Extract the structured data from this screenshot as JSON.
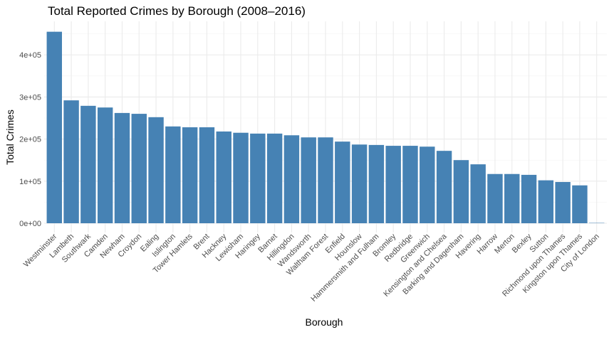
{
  "chart_data": {
    "type": "bar",
    "title": "Total Reported Crimes by Borough (2008–2016)",
    "xlabel": "Borough",
    "ylabel": "Total Crimes",
    "ylim": [
      0,
      480000
    ],
    "yticks": [
      0,
      100000,
      200000,
      300000,
      400000
    ],
    "ytick_labels": [
      "0e+00",
      "1e+05",
      "2e+05",
      "3e+05",
      "4e+05"
    ],
    "grid": true,
    "bar_color": "#4682B4",
    "categories": [
      "Westminster",
      "Lambeth",
      "Southwark",
      "Camden",
      "Newham",
      "Croydon",
      "Ealing",
      "Islington",
      "Tower Hamlets",
      "Brent",
      "Hackney",
      "Lewisham",
      "Haringey",
      "Barnet",
      "Hillingdon",
      "Wandsworth",
      "Waltham Forest",
      "Enfield",
      "Hounslow",
      "Hammersmith and Fulham",
      "Bromley",
      "Redbridge",
      "Greenwich",
      "Kensington and Chelsea",
      "Barking and Dagenham",
      "Havering",
      "Harrow",
      "Merton",
      "Bexley",
      "Sutton",
      "Richmond upon Thames",
      "Kingston upon Thames",
      "City of London"
    ],
    "values": [
      455000,
      292000,
      279000,
      275000,
      262000,
      260000,
      252000,
      230000,
      228000,
      228000,
      218000,
      215000,
      213000,
      213000,
      209000,
      204000,
      204000,
      194000,
      187000,
      186000,
      184000,
      184000,
      182000,
      172000,
      150000,
      140000,
      117000,
      117000,
      115000,
      102000,
      98000,
      90000,
      800
    ]
  }
}
